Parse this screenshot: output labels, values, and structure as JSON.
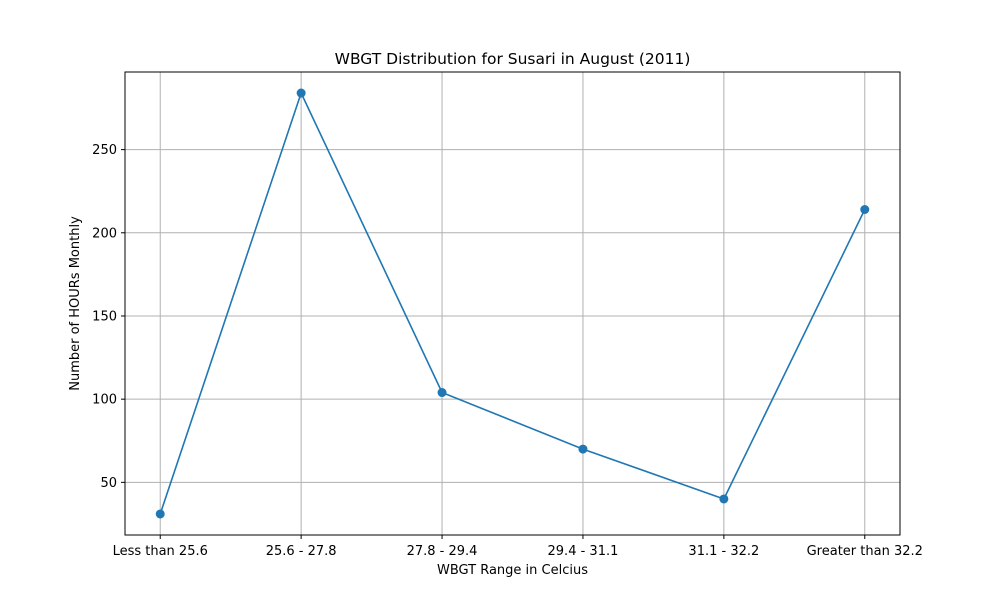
{
  "chart_data": {
    "type": "line",
    "title": "WBGT Distribution for Susari in August (2011)",
    "xlabel": "WBGT Range in Celcius",
    "ylabel": "Number of HOURs Monthly",
    "categories": [
      "Less than 25.6",
      "25.6 - 27.8",
      "27.8 - 29.4",
      "29.4 - 31.1",
      "31.1 - 32.2",
      "Greater than 32.2"
    ],
    "series": [
      {
        "values": [
          31,
          284,
          104,
          70,
          40,
          214
        ]
      }
    ],
    "yticks": [
      50,
      100,
      150,
      200,
      250
    ],
    "ylim": [
      18.35,
      296.65
    ],
    "grid": true,
    "marker": "circle",
    "colors": {
      "line": "#1f77b4",
      "grid": "#b0b0b0",
      "axes": "#000000"
    }
  }
}
